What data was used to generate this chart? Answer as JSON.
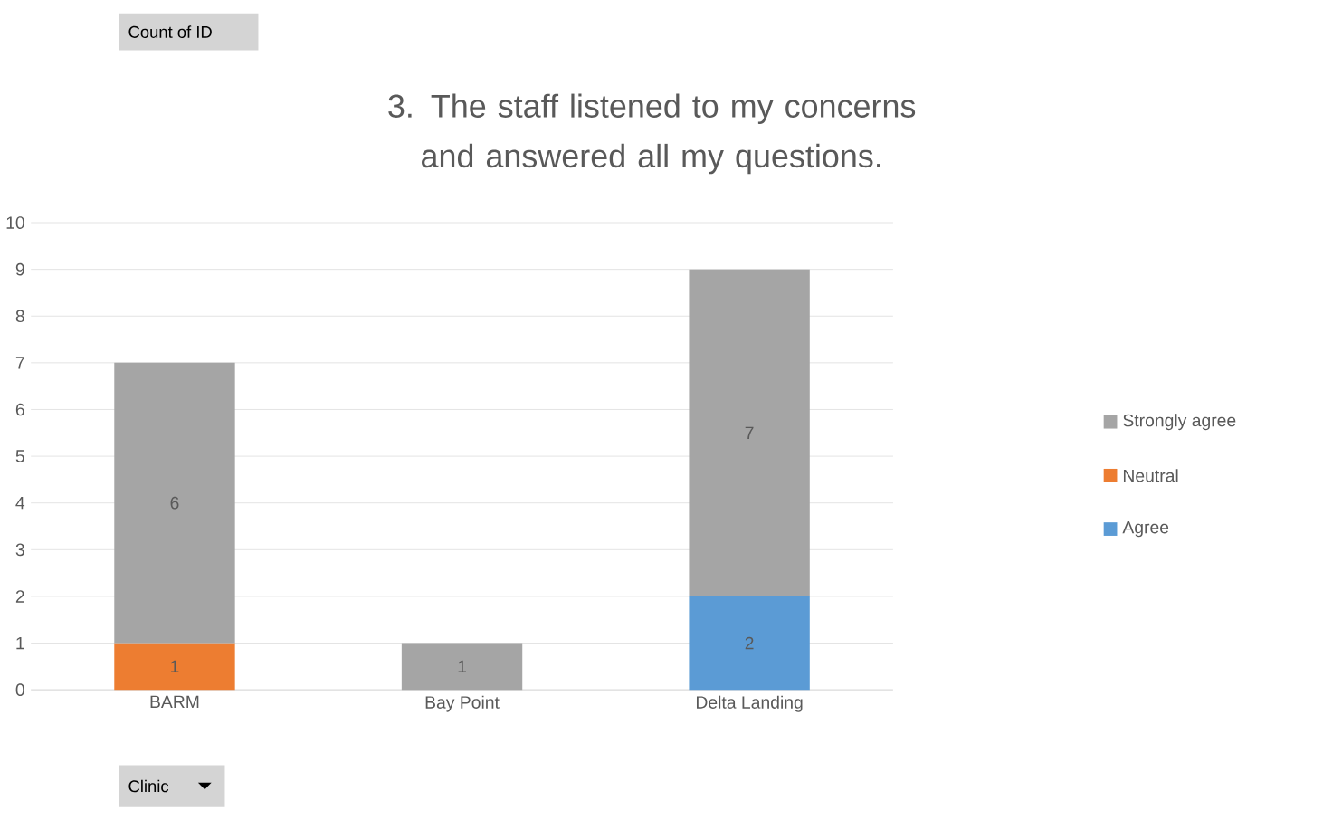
{
  "chart_data": {
    "type": "bar",
    "title": "3. The staff listened to my concerns and answered all my questions.",
    "categories": [
      "BARM",
      "Bay Point",
      "Delta Landing"
    ],
    "series": [
      {
        "name": "Agree",
        "color": "#5b9bd5",
        "values": [
          null,
          null,
          2
        ]
      },
      {
        "name": "Neutral",
        "color": "#ed7d31",
        "values": [
          1,
          null,
          null
        ]
      },
      {
        "name": "Strongly agree",
        "color": "#a5a5a5",
        "values": [
          6,
          1,
          7
        ]
      }
    ],
    "stacked": true,
    "data_labels": true,
    "ylim": [
      0,
      10
    ],
    "yticks": [
      0,
      1,
      2,
      3,
      4,
      5,
      6,
      7,
      8,
      9,
      10
    ],
    "grid": "y",
    "legend": "right",
    "annotations": [
      "Count of ID",
      "Clinic"
    ]
  }
}
